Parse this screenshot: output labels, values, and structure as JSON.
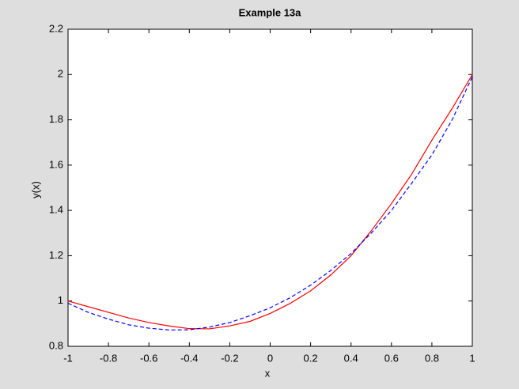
{
  "chart_data": {
    "type": "line",
    "title": "Example 13a",
    "x_label": "x",
    "y_label": "y(x)",
    "x": [
      -1,
      -0.9,
      -0.8,
      -0.7,
      -0.6,
      -0.5,
      -0.4,
      -0.3,
      -0.2,
      -0.1,
      0,
      0.1,
      0.2,
      0.3,
      0.4,
      0.5,
      0.6,
      0.7,
      0.8,
      0.9,
      1
    ],
    "series": [
      {
        "color": "#ff0000",
        "dash": false,
        "values": [
          1.0,
          0.975,
          0.95,
          0.925,
          0.905,
          0.89,
          0.878,
          0.877,
          0.89,
          0.91,
          0.945,
          0.99,
          1.045,
          1.115,
          1.2,
          1.31,
          1.43,
          1.56,
          1.71,
          1.85,
          2.0
        ]
      },
      {
        "color": "#0000ff",
        "dash": true,
        "values": [
          0.99,
          0.95,
          0.92,
          0.895,
          0.88,
          0.872,
          0.873,
          0.885,
          0.905,
          0.935,
          0.97,
          1.015,
          1.07,
          1.135,
          1.21,
          1.3,
          1.4,
          1.52,
          1.645,
          1.8,
          1.99
        ]
      }
    ],
    "xlim": [
      -1,
      1
    ],
    "xticks": [
      -1,
      -0.8,
      -0.6,
      -0.4,
      -0.2,
      0,
      0.2,
      0.4,
      0.6,
      0.8,
      1
    ],
    "ylim": [
      0.8,
      2.2
    ],
    "yticks": [
      0.8,
      1,
      1.2,
      1.4,
      1.6,
      1.8,
      2,
      2.2
    ],
    "grid": false
  }
}
